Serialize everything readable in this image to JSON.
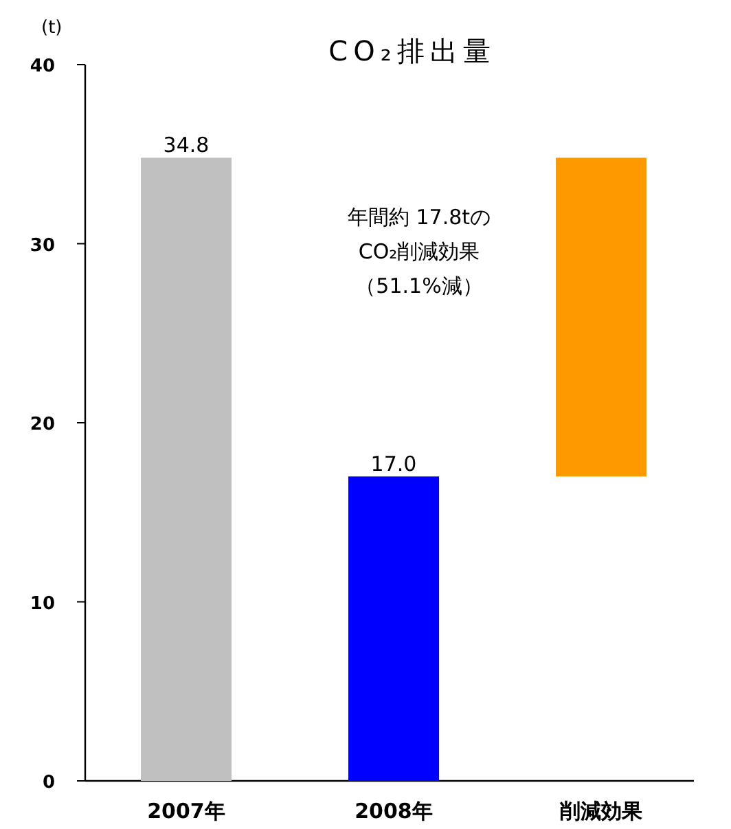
{
  "chart_data": {
    "type": "bar",
    "title": "CO₂排出量",
    "ylabel": "(t)",
    "categories": [
      "2007年",
      "2008年",
      "削減効果"
    ],
    "values": [
      34.8,
      17.0,
      17.8
    ],
    "base": [
      0,
      0,
      17.0
    ],
    "colors": [
      "#c0c0c0",
      "#0000ff",
      "#ff9900"
    ],
    "value_labels": [
      "34.8",
      "17.0",
      null
    ],
    "annotations": [
      "年間約 17.8tの",
      "CO₂削減効果",
      "（51.1%減）"
    ],
    "ylim": [
      0,
      40
    ],
    "yticks": [
      0,
      10,
      20,
      30,
      40
    ],
    "grid": false
  }
}
